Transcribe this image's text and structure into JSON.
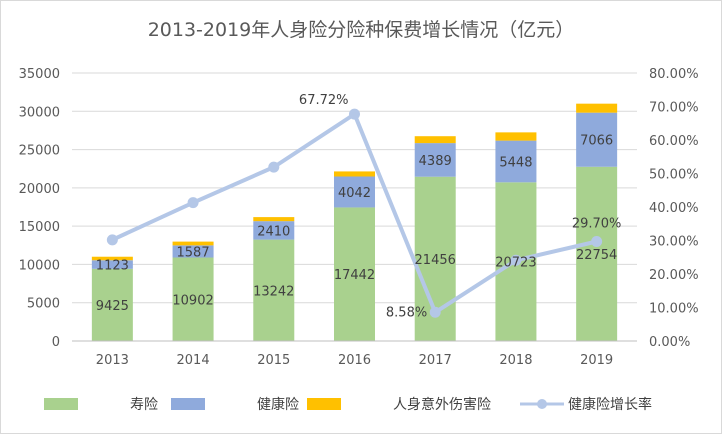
{
  "chart_data": {
    "type": "bar",
    "title": "2013-2019年人身险分险种保费增长情况（亿元）",
    "categories": [
      "2013",
      "2014",
      "2015",
      "2016",
      "2017",
      "2018",
      "2019"
    ],
    "series": [
      {
        "name": "寿险",
        "type": "bar",
        "stack": "total",
        "axis": "left",
        "color": "#A9D18E",
        "values": [
          9425,
          10902,
          13242,
          17442,
          21456,
          20723,
          22754
        ]
      },
      {
        "name": "健康险",
        "type": "bar",
        "stack": "total",
        "axis": "left",
        "color": "#8FAADC",
        "values": [
          1123,
          1587,
          2410,
          4042,
          4389,
          5448,
          7066
        ]
      },
      {
        "name": "人身意外伤害险",
        "type": "bar",
        "stack": "total",
        "axis": "left",
        "color": "#FFC000",
        "values": [
          458,
          492,
          528,
          662,
          901,
          1076,
          1175
        ]
      },
      {
        "name": "健康险增长率",
        "type": "line",
        "axis": "right",
        "color": "#B4C7E7",
        "values": [
          30.2,
          41.3,
          51.9,
          67.72,
          8.58,
          24.1,
          29.7
        ],
        "labeled_values": [
          null,
          null,
          null,
          "67.72%",
          "8.58%",
          null,
          "29.70%"
        ]
      }
    ],
    "y_left": {
      "min": 0,
      "max": 35000,
      "ticks": [
        "0",
        "5000",
        "10000",
        "15000",
        "20000",
        "25000",
        "30000",
        "35000"
      ]
    },
    "y_right": {
      "min": 0,
      "max": 80,
      "ticks": [
        "0.00%",
        "10.00%",
        "20.00%",
        "30.00%",
        "40.00%",
        "50.00%",
        "60.00%",
        "70.00%",
        "80.00%"
      ]
    },
    "grid": true,
    "legend_position": "bottom"
  }
}
